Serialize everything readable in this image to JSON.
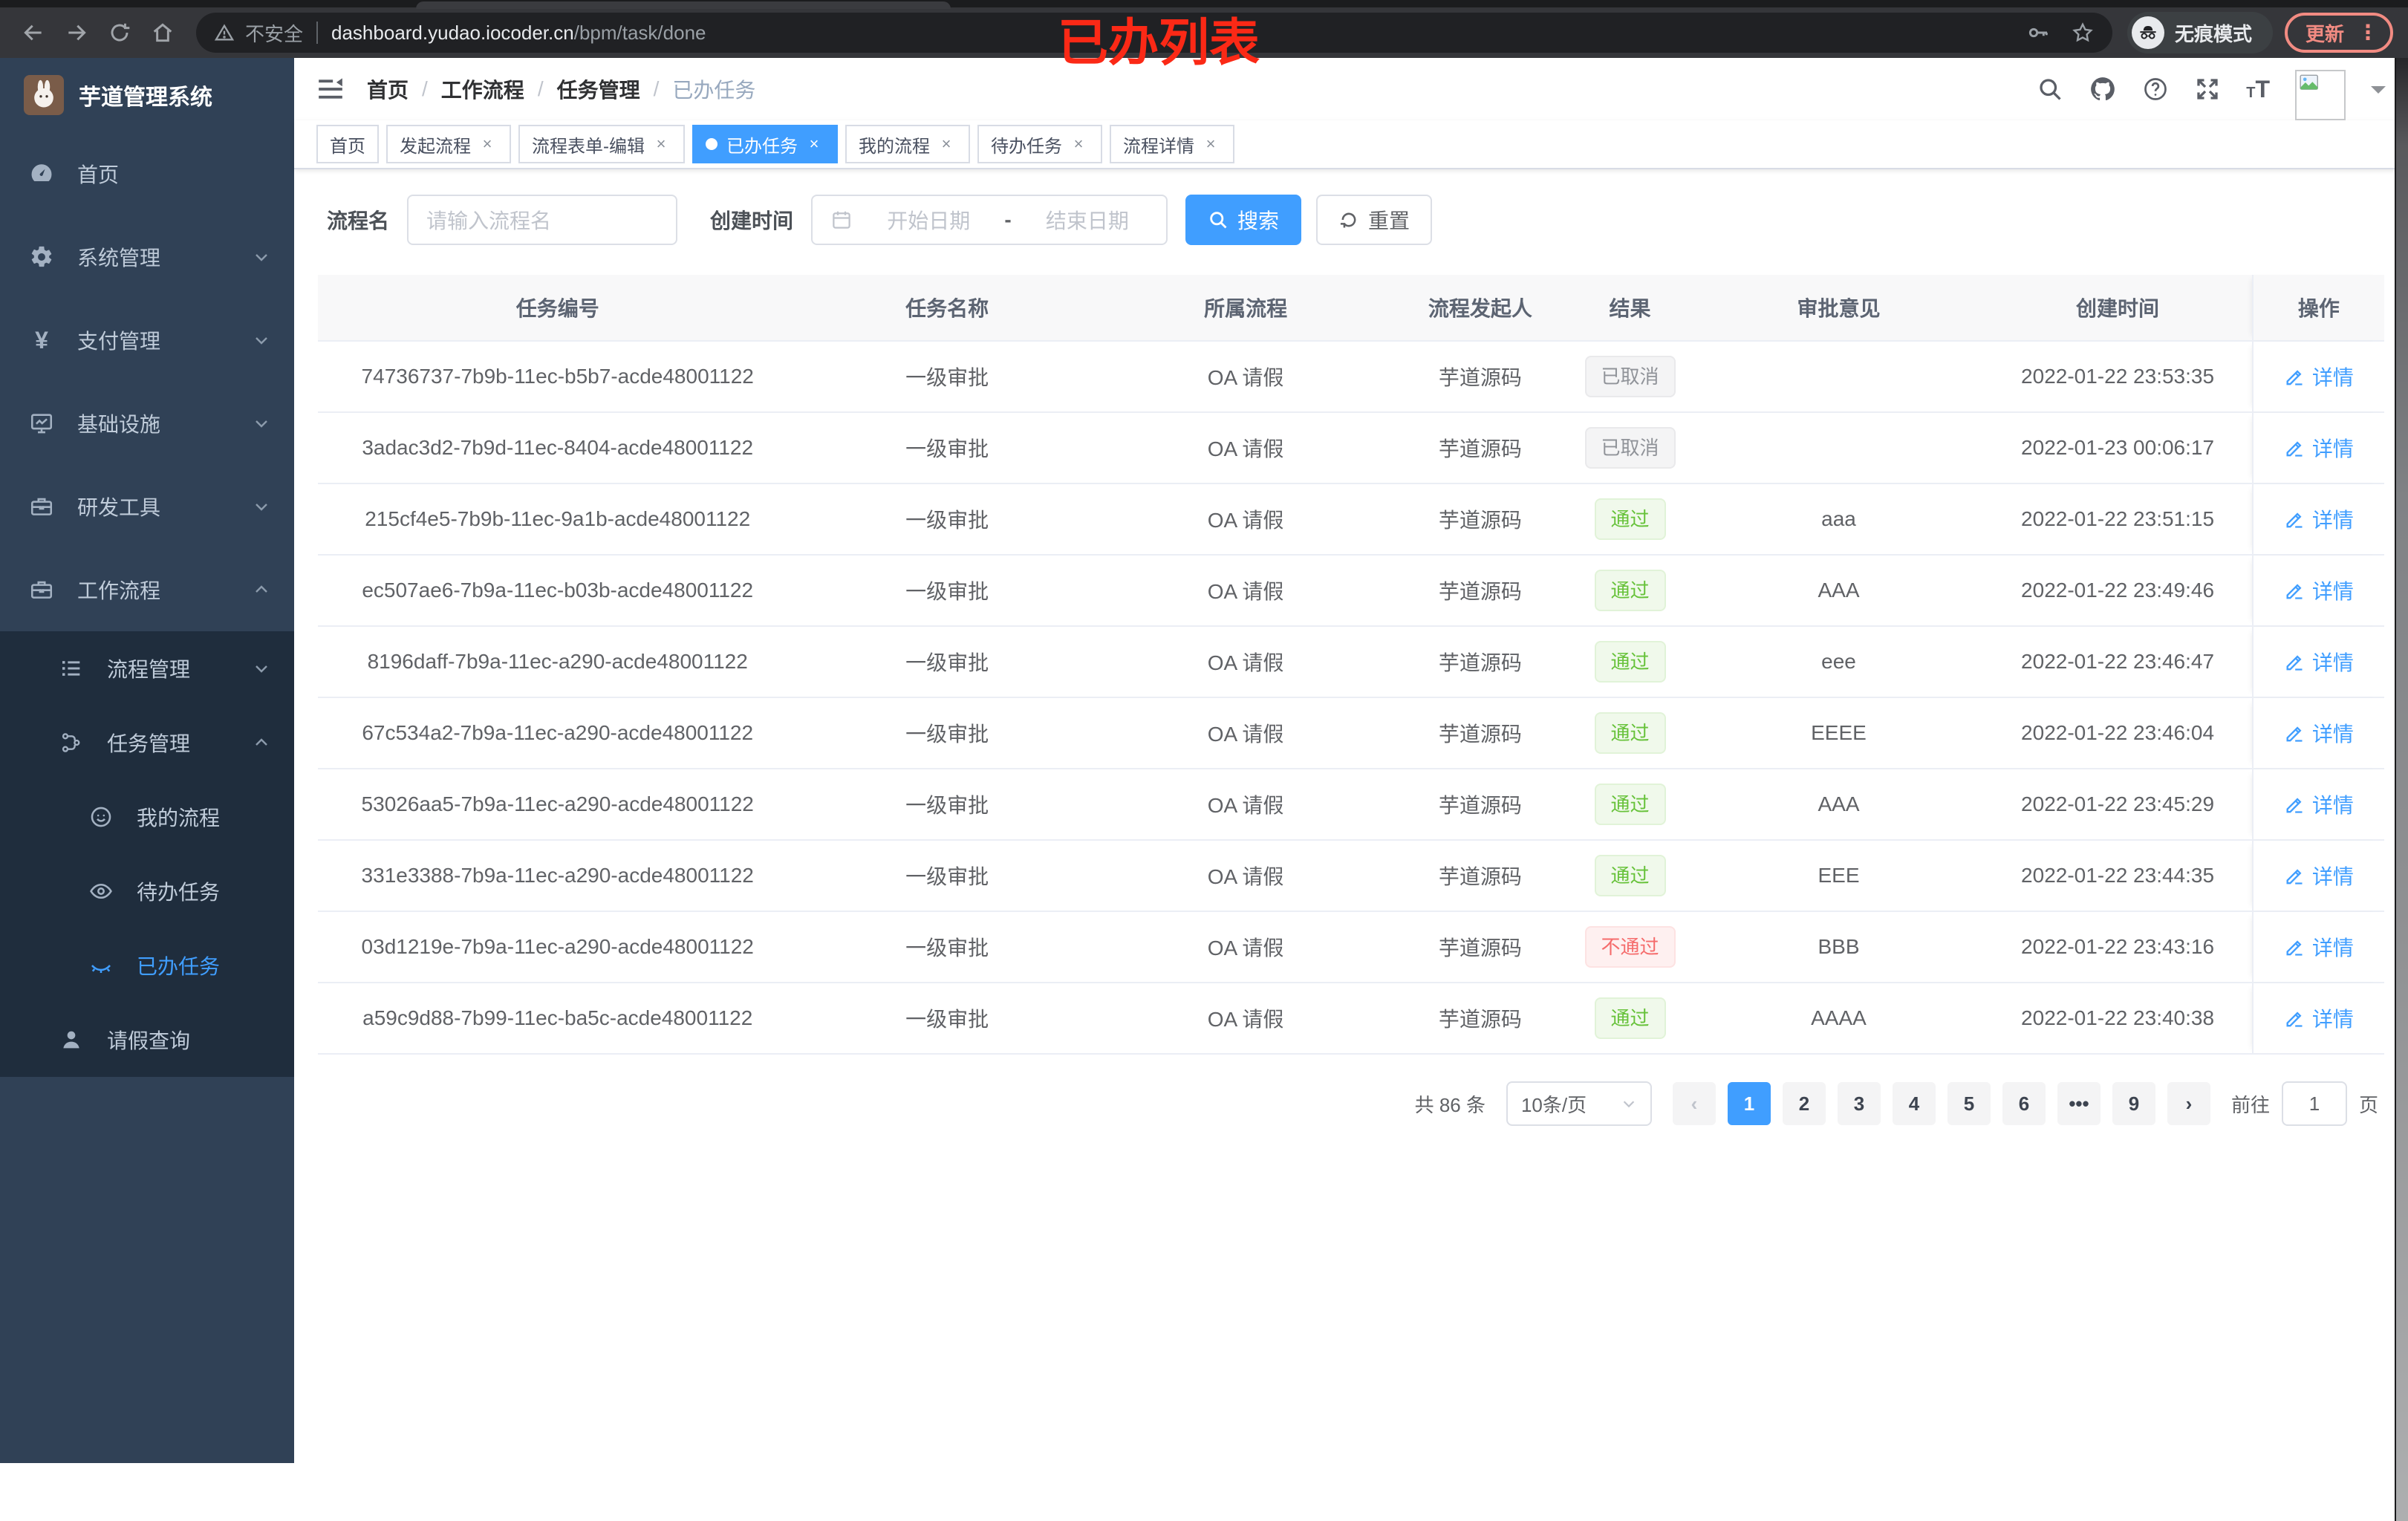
{
  "browser": {
    "security_label": "不安全",
    "url_host": "dashboard.yudao.iocoder.cn",
    "url_path": "/bpm/task/done",
    "incognito_label": "无痕模式",
    "update_label": "更新",
    "annotation": "已办列表"
  },
  "sidebar": {
    "app_title": "芋道管理系统",
    "items": [
      {
        "label": "首页"
      },
      {
        "label": "系统管理"
      },
      {
        "label": "支付管理"
      },
      {
        "label": "基础设施"
      },
      {
        "label": "研发工具"
      },
      {
        "label": "工作流程"
      },
      {
        "label": "流程管理"
      },
      {
        "label": "任务管理"
      },
      {
        "label": "我的流程"
      },
      {
        "label": "待办任务"
      },
      {
        "label": "已办任务"
      },
      {
        "label": "请假查询"
      }
    ]
  },
  "breadcrumb": [
    "首页",
    "工作流程",
    "任务管理",
    "已办任务"
  ],
  "tabs": [
    {
      "label": "首页",
      "closable": false,
      "active": false
    },
    {
      "label": "发起流程",
      "closable": true,
      "active": false
    },
    {
      "label": "流程表单-编辑",
      "closable": true,
      "active": false
    },
    {
      "label": "已办任务",
      "closable": true,
      "active": true
    },
    {
      "label": "我的流程",
      "closable": true,
      "active": false
    },
    {
      "label": "待办任务",
      "closable": true,
      "active": false
    },
    {
      "label": "流程详情",
      "closable": true,
      "active": false
    }
  ],
  "filters": {
    "name_label": "流程名",
    "name_placeholder": "请输入流程名",
    "time_label": "创建时间",
    "start_placeholder": "开始日期",
    "range_separator": "-",
    "end_placeholder": "结束日期",
    "search_label": "搜索",
    "reset_label": "重置"
  },
  "table": {
    "columns": [
      "任务编号",
      "任务名称",
      "所属流程",
      "流程发起人",
      "结果",
      "审批意见",
      "创建时间",
      "操作"
    ],
    "detail_label": "详情",
    "rows": [
      {
        "id": "74736737-7b9b-11ec-b5b7-acde48001122",
        "name": "一级审批",
        "process": "OA 请假",
        "starter": "芋道源码",
        "result": "已取消",
        "result_type": "info",
        "opinion": "",
        "time": "2022-01-22 23:53:35"
      },
      {
        "id": "3adac3d2-7b9d-11ec-8404-acde48001122",
        "name": "一级审批",
        "process": "OA 请假",
        "starter": "芋道源码",
        "result": "已取消",
        "result_type": "info",
        "opinion": "",
        "time": "2022-01-23 00:06:17"
      },
      {
        "id": "215cf4e5-7b9b-11ec-9a1b-acde48001122",
        "name": "一级审批",
        "process": "OA 请假",
        "starter": "芋道源码",
        "result": "通过",
        "result_type": "success",
        "opinion": "aaa",
        "time": "2022-01-22 23:51:15"
      },
      {
        "id": "ec507ae6-7b9a-11ec-b03b-acde48001122",
        "name": "一级审批",
        "process": "OA 请假",
        "starter": "芋道源码",
        "result": "通过",
        "result_type": "success",
        "opinion": "AAA",
        "time": "2022-01-22 23:49:46"
      },
      {
        "id": "8196daff-7b9a-11ec-a290-acde48001122",
        "name": "一级审批",
        "process": "OA 请假",
        "starter": "芋道源码",
        "result": "通过",
        "result_type": "success",
        "opinion": "eee",
        "time": "2022-01-22 23:46:47"
      },
      {
        "id": "67c534a2-7b9a-11ec-a290-acde48001122",
        "name": "一级审批",
        "process": "OA 请假",
        "starter": "芋道源码",
        "result": "通过",
        "result_type": "success",
        "opinion": "EEEE",
        "time": "2022-01-22 23:46:04"
      },
      {
        "id": "53026aa5-7b9a-11ec-a290-acde48001122",
        "name": "一级审批",
        "process": "OA 请假",
        "starter": "芋道源码",
        "result": "通过",
        "result_type": "success",
        "opinion": "AAA",
        "time": "2022-01-22 23:45:29"
      },
      {
        "id": "331e3388-7b9a-11ec-a290-acde48001122",
        "name": "一级审批",
        "process": "OA 请假",
        "starter": "芋道源码",
        "result": "通过",
        "result_type": "success",
        "opinion": "EEE",
        "time": "2022-01-22 23:44:35"
      },
      {
        "id": "03d1219e-7b9a-11ec-a290-acde48001122",
        "name": "一级审批",
        "process": "OA 请假",
        "starter": "芋道源码",
        "result": "不通过",
        "result_type": "danger",
        "opinion": "BBB",
        "time": "2022-01-22 23:43:16"
      },
      {
        "id": "a59c9d88-7b99-11ec-ba5c-acde48001122",
        "name": "一级审批",
        "process": "OA 请假",
        "starter": "芋道源码",
        "result": "通过",
        "result_type": "success",
        "opinion": "AAAA",
        "time": "2022-01-22 23:40:38"
      }
    ]
  },
  "pagination": {
    "total_text": "共 86 条",
    "page_size": "10条/页",
    "pages": [
      "1",
      "2",
      "3",
      "4",
      "5",
      "6",
      "•••",
      "9"
    ],
    "active_page": "1",
    "prev": "‹",
    "next": "›",
    "goto_label": "前往",
    "goto_value": "1",
    "page_unit": "页"
  },
  "icons": [
    "back-icon",
    "forward-icon",
    "reload-icon",
    "home-icon",
    "warning-icon",
    "key-icon",
    "star-icon",
    "incognito-icon",
    "menu-dots-icon",
    "hamburger-icon",
    "search-icon",
    "github-icon",
    "help-icon",
    "fullscreen-icon",
    "font-size-icon",
    "avatar",
    "caret-down-icon",
    "dashboard-icon",
    "gear-icon",
    "yen-icon",
    "monitor-icon",
    "toolbox-icon",
    "list-icon",
    "org-icon",
    "face-icon",
    "eye-open-icon",
    "eye-closed-icon",
    "user-icon",
    "calendar-icon",
    "refresh-icon",
    "edit-icon"
  ],
  "colors": {
    "primary": "#409eff",
    "success": "#67c23a",
    "danger": "#f56c6c",
    "info": "#909399",
    "annotation": "#fb2916",
    "update_button": "#f28b82",
    "sidebar_bg": "#304156",
    "submenu_bg": "#1f2d3d"
  }
}
